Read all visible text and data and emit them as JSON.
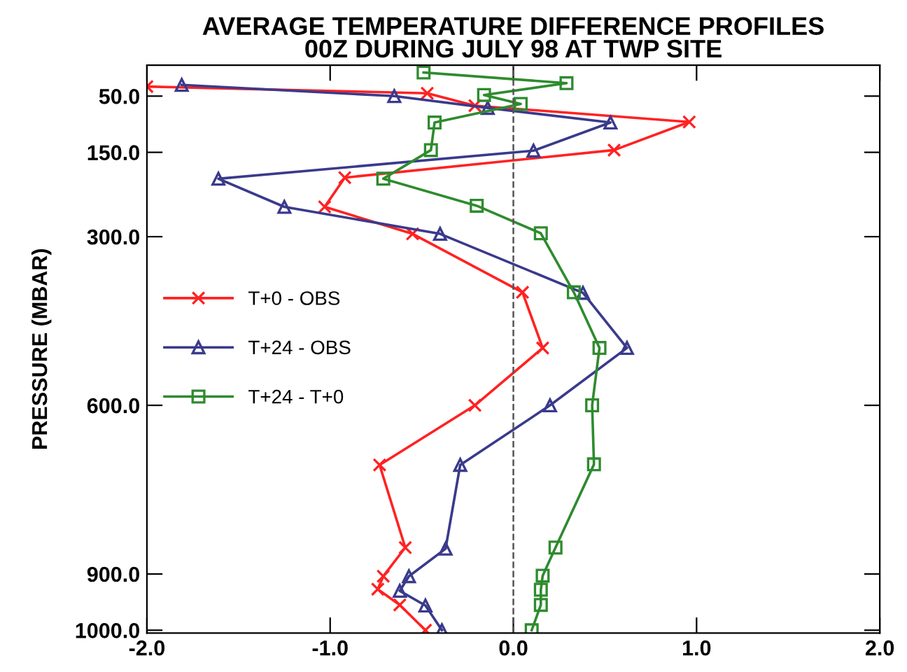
{
  "chart_data": {
    "type": "line",
    "title": "AVERAGE TEMPERATURE DIFFERENCE PROFILES\n00Z DURING JULY 98 AT TWP SITE",
    "ylabel": "PRESSURE (MBAR)",
    "xlim": [
      -2,
      2
    ],
    "ylim": [
      1005,
      -5
    ],
    "xticks": [
      {
        "value": -2,
        "label": "-2.0"
      },
      {
        "value": -1,
        "label": "-1.0"
      },
      {
        "value": 0,
        "label": "0.0"
      },
      {
        "value": 1,
        "label": "1.0"
      },
      {
        "value": 2,
        "label": "2.0"
      }
    ],
    "yticks": [
      {
        "value": 50,
        "label": "50.0"
      },
      {
        "value": 150,
        "label": "150.0"
      },
      {
        "value": 300,
        "label": "300.0"
      },
      {
        "value": 600,
        "label": "600.0"
      },
      {
        "value": 900,
        "label": "900.0"
      },
      {
        "value": 1000,
        "label": "1000.0"
      }
    ],
    "series": [
      {
        "name": "T+0 - OBS",
        "color": "#ff2222",
        "marker": "cross",
        "x": [
          -2.0,
          -0.47,
          -0.21,
          0.96,
          0.55,
          -0.92,
          -1.03,
          -0.55,
          0.05,
          0.16,
          -0.21,
          -0.73,
          -0.59,
          -0.71,
          -0.74,
          -0.62,
          -0.48
        ],
        "values": [
          33,
          45,
          67,
          96,
          146,
          195,
          247,
          295,
          399,
          498,
          600,
          706,
          853,
          904,
          927,
          955,
          1000
        ]
      },
      {
        "name": "T+24 - OBS",
        "color": "#3a3a8c",
        "marker": "triangle",
        "x": [
          -1.81,
          -0.65,
          -0.14,
          0.53,
          0.11,
          -1.61,
          -1.25,
          -0.4,
          0.38,
          0.62,
          0.2,
          -0.29,
          -0.37,
          -0.57,
          -0.62,
          -0.48,
          -0.39
        ],
        "values": [
          30,
          50,
          71,
          97,
          147,
          197,
          247,
          295,
          400,
          498,
          600,
          706,
          855,
          904,
          930,
          956,
          1000
        ]
      },
      {
        "name": "T+24 - T+0",
        "color": "#2e8b2e",
        "marker": "square",
        "x": [
          -0.49,
          0.29,
          -0.16,
          0.04,
          -0.43,
          -0.45,
          -0.71,
          -0.2,
          0.15,
          0.33,
          0.47,
          0.43,
          0.44,
          0.23,
          0.16,
          0.15,
          0.15,
          0.1
        ],
        "values": [
          8,
          27,
          48,
          64,
          97,
          146,
          197,
          245,
          294,
          399,
          498,
          600,
          705,
          853,
          903,
          928,
          955,
          1000
        ]
      }
    ],
    "ref_lines": [
      {
        "axis": "x",
        "value": 0,
        "color": "#555555",
        "line_style": "dashed"
      }
    ],
    "legend": "left",
    "grid": false
  }
}
